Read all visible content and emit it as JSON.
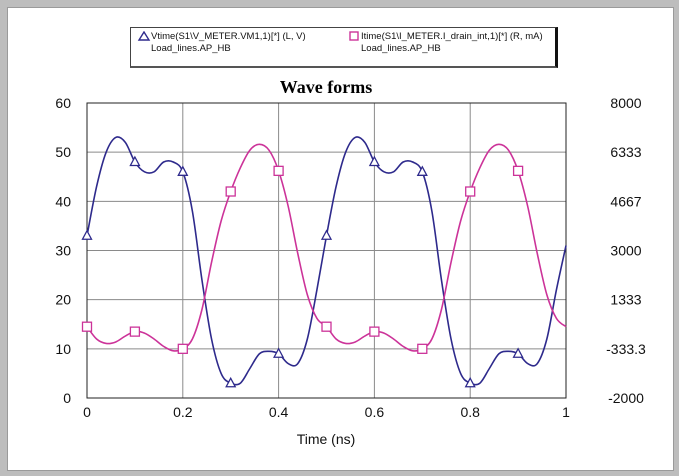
{
  "chart_data": {
    "type": "line",
    "title": "Wave forms",
    "xlabel": "Time (ns)",
    "ylabel_left": "",
    "ylabel_right": "",
    "xlim": [
      0,
      1
    ],
    "ylim_left": [
      0,
      60
    ],
    "ylim_right": [
      -2000,
      8000
    ],
    "x_ticks": [
      "0",
      "0.2",
      "0.4",
      "0.6",
      "0.8",
      "1"
    ],
    "y_left_ticks": [
      "0",
      "10",
      "20",
      "30",
      "40",
      "50",
      "60"
    ],
    "y_right_ticks": [
      "-2000",
      "-333.3",
      "1333",
      "3000",
      "4667",
      "6333",
      "8000"
    ],
    "grid": true,
    "series": [
      {
        "name": "Vtime(S1\\V_METER.VM1,1)[*] (L, V)",
        "source": "Load_lines.AP_HB",
        "axis": "left",
        "color": "#2e2a8c",
        "marker": "triangle",
        "x": [
          0,
          0.02,
          0.04,
          0.06,
          0.08,
          0.1,
          0.12,
          0.14,
          0.16,
          0.18,
          0.2,
          0.22,
          0.24,
          0.26,
          0.28,
          0.3,
          0.32,
          0.34,
          0.36,
          0.38,
          0.4,
          0.42,
          0.44,
          0.46,
          0.48,
          0.5,
          0.52,
          0.54,
          0.56,
          0.58,
          0.6,
          0.62,
          0.64,
          0.66,
          0.68,
          0.7,
          0.72,
          0.74,
          0.76,
          0.78,
          0.8,
          0.82,
          0.84,
          0.86,
          0.88,
          0.9,
          0.92,
          0.94,
          0.96,
          0.98,
          1
        ],
        "values": [
          33,
          43,
          50,
          53,
          52,
          48,
          46,
          46,
          48,
          48,
          46,
          38,
          24,
          12,
          5,
          3,
          3,
          6,
          9,
          9.5,
          9,
          7,
          7,
          12,
          22,
          33,
          43,
          50,
          53,
          52,
          48,
          46,
          46,
          48,
          48,
          46,
          38,
          24,
          12,
          5,
          3,
          3,
          6,
          9,
          9.5,
          9,
          7,
          7,
          12,
          22,
          31
        ],
        "marker_x": [
          0,
          0.1,
          0.2,
          0.3,
          0.4,
          0.5,
          0.6,
          0.7,
          0.8,
          0.9
        ]
      },
      {
        "name": "Itime(S1\\I_METER.I_drain_int,1)[*] (R, mA)",
        "source": "Load_lines.AP_HB",
        "axis": "right",
        "color": "#cc3399",
        "marker": "square",
        "x": [
          0,
          0.02,
          0.04,
          0.06,
          0.08,
          0.1,
          0.12,
          0.14,
          0.16,
          0.18,
          0.2,
          0.22,
          0.24,
          0.26,
          0.28,
          0.3,
          0.32,
          0.34,
          0.36,
          0.38,
          0.4,
          0.42,
          0.44,
          0.46,
          0.48,
          0.5,
          0.52,
          0.54,
          0.56,
          0.58,
          0.6,
          0.62,
          0.64,
          0.66,
          0.68,
          0.7,
          0.72,
          0.74,
          0.76,
          0.78,
          0.8,
          0.82,
          0.84,
          0.86,
          0.88,
          0.9,
          0.92,
          0.94,
          0.96,
          0.98,
          1
        ],
        "values": [
          417,
          0,
          -150,
          -100,
          100,
          250,
          200,
          0,
          -250,
          -400,
          -333,
          0,
          1000,
          2600,
          4000,
          5000,
          5800,
          6400,
          6600,
          6400,
          5700,
          4500,
          2900,
          1500,
          700,
          417,
          0,
          -150,
          -100,
          100,
          250,
          200,
          0,
          -250,
          -400,
          -333,
          0,
          1000,
          2600,
          4000,
          5000,
          5800,
          6400,
          6600,
          6400,
          5700,
          4500,
          2900,
          1500,
          700,
          417
        ],
        "marker_x": [
          0,
          0.1,
          0.2,
          0.3,
          0.4,
          0.5,
          0.6,
          0.7,
          0.8,
          0.9
        ]
      }
    ]
  }
}
